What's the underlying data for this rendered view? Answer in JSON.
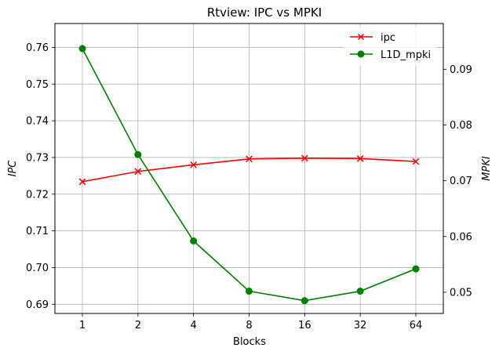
{
  "chart_data": {
    "type": "line",
    "title": "Rtview: IPC vs MPKI",
    "xlabel": "Blocks",
    "ylabel_left": "IPC",
    "ylabel_right": "MPKI",
    "categories": [
      "1",
      "2",
      "4",
      "8",
      "16",
      "32",
      "64"
    ],
    "left_axis": {
      "ylim": [
        0.6875,
        0.7665
      ],
      "ticks": [
        "0.69",
        "0.70",
        "0.71",
        "0.72",
        "0.73",
        "0.74",
        "0.75",
        "0.76"
      ],
      "tick_values": [
        0.69,
        0.7,
        0.71,
        0.72,
        0.73,
        0.74,
        0.75,
        0.76
      ]
    },
    "right_axis": {
      "ylim": [
        0.0462,
        0.0982
      ],
      "ticks": [
        "0.05",
        "0.06",
        "0.07",
        "0.08",
        "0.09"
      ],
      "tick_values": [
        0.05,
        0.06,
        0.07,
        0.08,
        0.09
      ]
    },
    "grid": true,
    "legend_position": "top-right",
    "series": [
      {
        "name": "ipc",
        "axis": "left",
        "color": "#ff0000",
        "marker": "x",
        "values": [
          0.7234,
          0.7262,
          0.728,
          0.7296,
          0.7298,
          0.7297,
          0.7289
        ]
      },
      {
        "name": "L1D_mpki",
        "axis": "right",
        "color": "#008000",
        "marker": "o",
        "values": [
          0.0937,
          0.0747,
          0.0592,
          0.0502,
          0.0485,
          0.0502,
          0.0542
        ]
      }
    ]
  }
}
